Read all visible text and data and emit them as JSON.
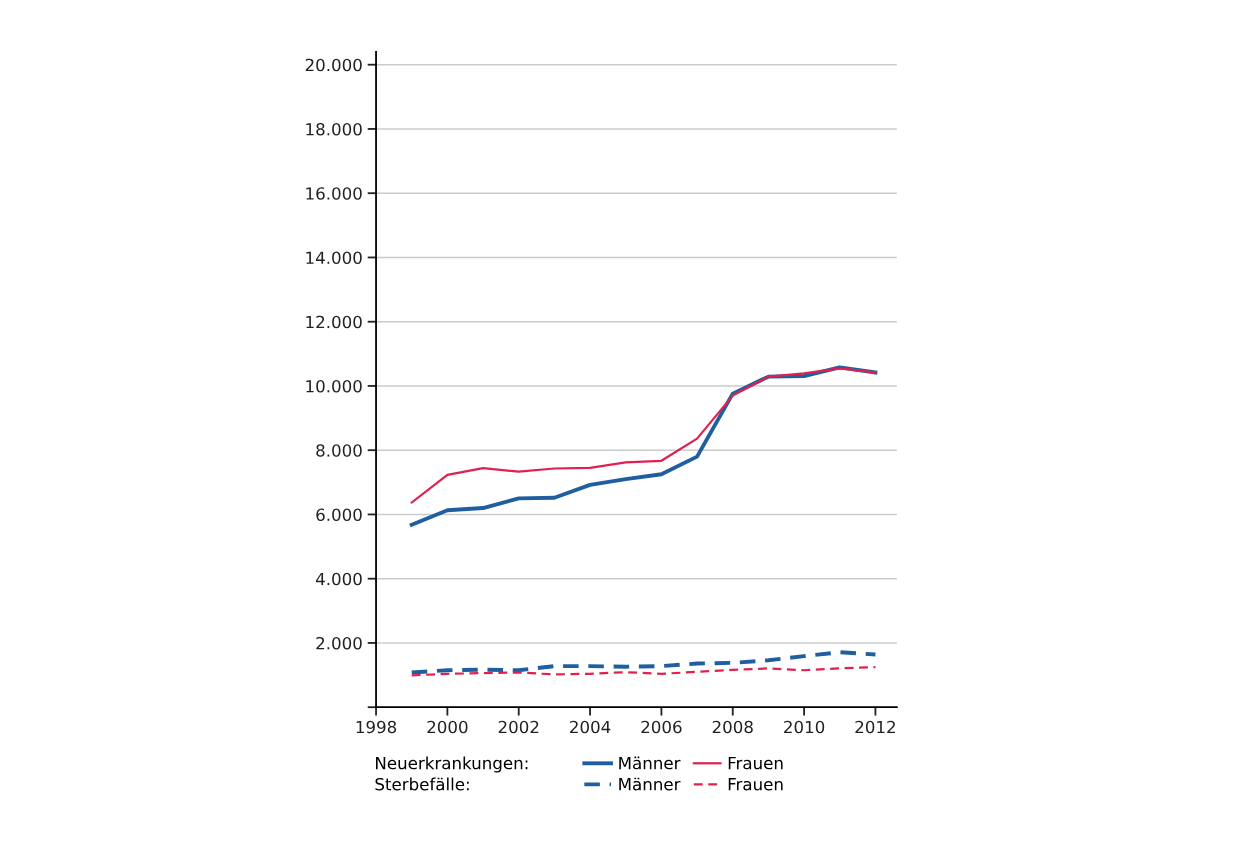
{
  "chart_data": {
    "type": "line",
    "x": [
      1999,
      2000,
      2001,
      2002,
      2003,
      2004,
      2005,
      2006,
      2007,
      2008,
      2009,
      2010,
      2011,
      2012
    ],
    "series": [
      {
        "name": "Männer",
        "color": "#1f5fa0",
        "line_style": "solid",
        "values": [
          5680,
          6130,
          6200,
          6500,
          6520,
          6920,
          7100,
          7250,
          7800,
          9760,
          10290,
          10310,
          10580,
          10420
        ]
      },
      {
        "name": "Frauen",
        "color": "#e0204f",
        "line_style": "solid",
        "values": [
          6370,
          7230,
          7440,
          7330,
          7430,
          7450,
          7620,
          7670,
          8360,
          9700,
          10290,
          10390,
          10550,
          10420
        ]
      },
      {
        "name": "Männer",
        "color": "#1f5fa0",
        "line_style": "dashed",
        "values": [
          1080,
          1150,
          1170,
          1150,
          1280,
          1280,
          1260,
          1280,
          1360,
          1380,
          1460,
          1590,
          1710,
          1640
        ]
      },
      {
        "name": "Frauen",
        "color": "#e0204f",
        "line_style": "dashed",
        "values": [
          990,
          1040,
          1060,
          1080,
          1020,
          1040,
          1090,
          1040,
          1100,
          1160,
          1210,
          1150,
          1210,
          1250
        ]
      }
    ],
    "annotations": [
      "Neuerkrankungen:",
      "Sterbefälle:"
    ],
    "xlim": [
      1998,
      2012.6
    ],
    "xticks": [
      1998,
      2000,
      2002,
      2004,
      2006,
      2008,
      2010,
      2012
    ],
    "ylim": [
      0,
      20400
    ],
    "yticks": [
      {
        "value": 0,
        "label": null
      },
      {
        "value": 2000,
        "label": "2.000"
      },
      {
        "value": 4000,
        "label": "4.000"
      },
      {
        "value": 6000,
        "label": "6.000"
      },
      {
        "value": 8000,
        "label": "8.000"
      },
      {
        "value": 10000,
        "label": "10.000"
      },
      {
        "value": 12000,
        "label": "12.000"
      },
      {
        "value": 14000,
        "label": "14.000"
      },
      {
        "value": 16000,
        "label": "16.000"
      },
      {
        "value": 18000,
        "label": "18.000"
      },
      {
        "value": 20000,
        "label": "20.000"
      }
    ],
    "grid": "y",
    "legend": "bottom",
    "marker": "none"
  }
}
